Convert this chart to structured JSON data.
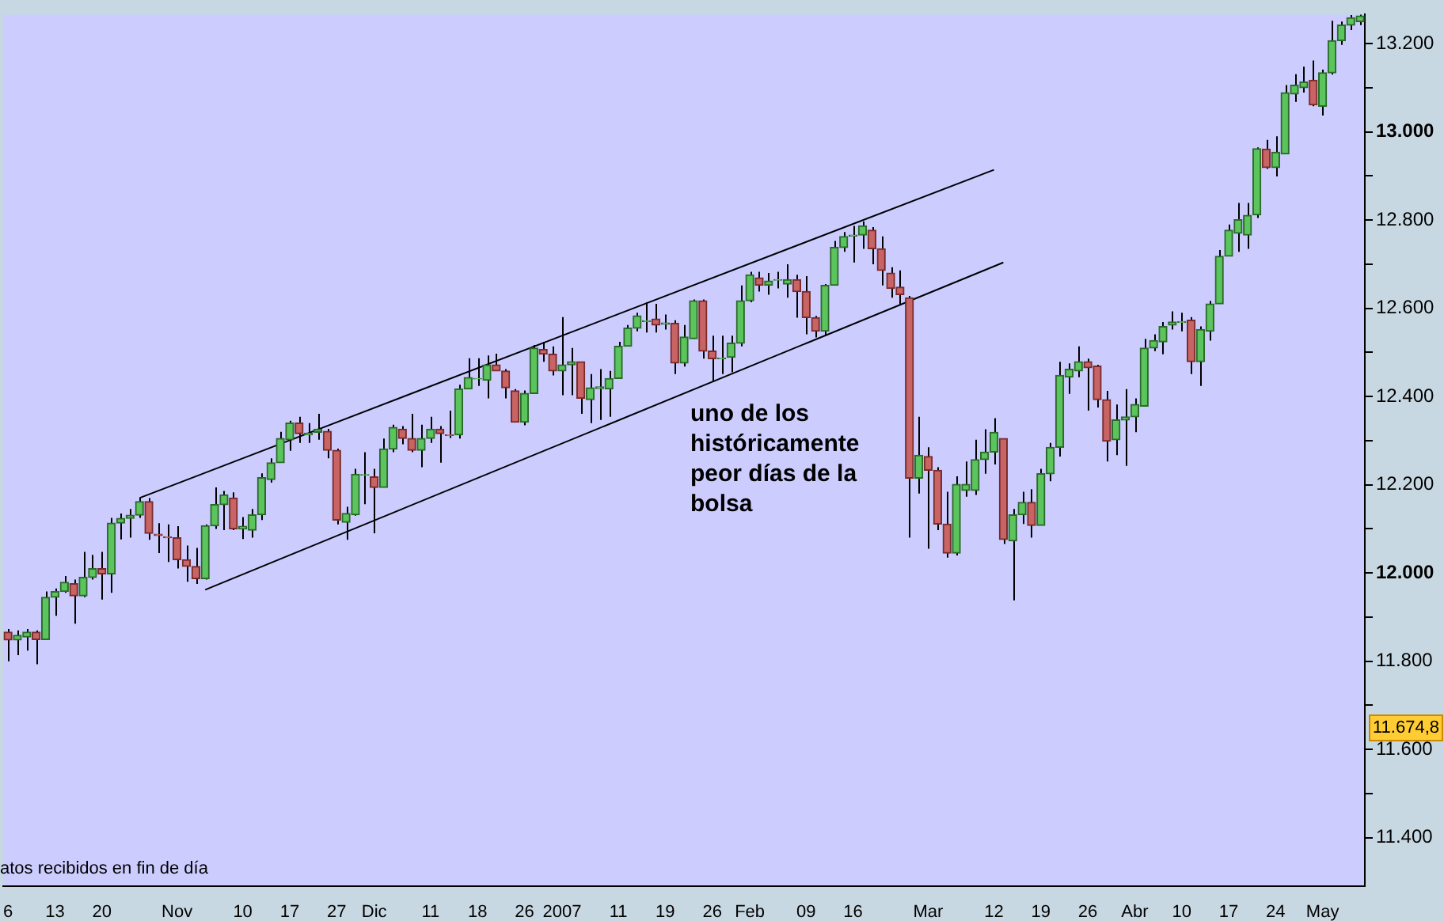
{
  "chart_data": {
    "type": "candlestick",
    "categories": [
      "6",
      null,
      null,
      null,
      null,
      "13",
      null,
      null,
      null,
      null,
      "20",
      null,
      null,
      null,
      null,
      null,
      null,
      null,
      "Nov",
      null,
      null,
      null,
      null,
      null,
      null,
      "10",
      null,
      null,
      null,
      null,
      "17",
      null,
      null,
      null,
      null,
      "27",
      null,
      null,
      null,
      "Dic",
      null,
      null,
      null,
      null,
      null,
      "11",
      null,
      null,
      null,
      null,
      "18",
      null,
      null,
      null,
      null,
      "26",
      null,
      null,
      null,
      "2007",
      null,
      null,
      null,
      null,
      null,
      "11",
      null,
      null,
      null,
      null,
      "19",
      null,
      null,
      null,
      null,
      "26",
      null,
      null,
      null,
      "Feb",
      null,
      null,
      null,
      null,
      null,
      "09",
      null,
      null,
      null,
      null,
      "16",
      null,
      null,
      null,
      null,
      null,
      null,
      null,
      "Mar",
      null,
      null,
      null,
      null,
      null,
      null,
      "12",
      null,
      null,
      null,
      null,
      "19",
      null,
      null,
      null,
      null,
      "26",
      null,
      null,
      null,
      null,
      "Abr",
      null,
      null,
      null,
      null,
      "10",
      null,
      null,
      null,
      null,
      "17",
      null,
      null,
      null,
      null,
      "24",
      null,
      null,
      null,
      null,
      "May",
      null,
      null,
      null,
      null
    ],
    "ohlc": [
      [
        11866,
        11873,
        11800,
        11848
      ],
      [
        11848,
        11870,
        11814,
        11859
      ],
      [
        11855,
        11873,
        11824,
        11866
      ],
      [
        11866,
        11870,
        11793,
        11849
      ],
      [
        11849,
        11958,
        11848,
        11945
      ],
      [
        11945,
        11965,
        11903,
        11958
      ],
      [
        11958,
        11993,
        11955,
        11979
      ],
      [
        11976,
        11985,
        11885,
        11948
      ],
      [
        11948,
        12048,
        11945,
        11990
      ],
      [
        11990,
        12041,
        11985,
        12010
      ],
      [
        12010,
        12048,
        11940,
        11998
      ],
      [
        11998,
        12125,
        11955,
        12113
      ],
      [
        12113,
        12135,
        12076,
        12124
      ],
      [
        12124,
        12145,
        12080,
        12131
      ],
      [
        12131,
        12170,
        12125,
        12162
      ],
      [
        12162,
        12170,
        12075,
        12090
      ],
      [
        12088,
        12113,
        12045,
        12085
      ],
      [
        12082,
        12110,
        12025,
        12080
      ],
      [
        12080,
        12106,
        12010,
        12030
      ],
      [
        12030,
        12062,
        11980,
        12015
      ],
      [
        12015,
        12057,
        11975,
        11987
      ],
      [
        11987,
        12110,
        11985,
        12107
      ],
      [
        12107,
        12194,
        12100,
        12155
      ],
      [
        12155,
        12186,
        12097,
        12177
      ],
      [
        12170,
        12183,
        12097,
        12100
      ],
      [
        12100,
        12127,
        12077,
        12106
      ],
      [
        12097,
        12145,
        12080,
        12132
      ],
      [
        12132,
        12226,
        12120,
        12216
      ],
      [
        12212,
        12260,
        12205,
        12250
      ],
      [
        12250,
        12320,
        12250,
        12305
      ],
      [
        12302,
        12345,
        12277,
        12340
      ],
      [
        12340,
        12354,
        12295,
        12316
      ],
      [
        12313,
        12340,
        12295,
        12317
      ],
      [
        12319,
        12361,
        12302,
        12326
      ],
      [
        12321,
        12327,
        12260,
        12278
      ],
      [
        12278,
        12282,
        12110,
        12120
      ],
      [
        12115,
        12150,
        12075,
        12135
      ],
      [
        12132,
        12236,
        12130,
        12224
      ],
      [
        12222,
        12274,
        12156,
        12223
      ],
      [
        12218,
        12236,
        12090,
        12194
      ],
      [
        12194,
        12305,
        12194,
        12281
      ],
      [
        12281,
        12336,
        12274,
        12330
      ],
      [
        12326,
        12333,
        12292,
        12305
      ],
      [
        12305,
        12361,
        12274,
        12278
      ],
      [
        12278,
        12336,
        12240,
        12305
      ],
      [
        12305,
        12354,
        12295,
        12326
      ],
      [
        12326,
        12333,
        12250,
        12316
      ],
      [
        12313,
        12368,
        12306,
        12312
      ],
      [
        12313,
        12427,
        12305,
        12417
      ],
      [
        12417,
        12487,
        12417,
        12443
      ],
      [
        12440,
        12487,
        12424,
        12441
      ],
      [
        12437,
        12493,
        12396,
        12472
      ],
      [
        12472,
        12497,
        12458,
        12458
      ],
      [
        12458,
        12462,
        12396,
        12420
      ],
      [
        12413,
        12417,
        12342,
        12342
      ],
      [
        12342,
        12414,
        12335,
        12407
      ],
      [
        12407,
        12517,
        12407,
        12510
      ],
      [
        12507,
        12524,
        12479,
        12496
      ],
      [
        12496,
        12514,
        12448,
        12458
      ],
      [
        12458,
        12580,
        12403,
        12472
      ],
      [
        12472,
        12510,
        12403,
        12479
      ],
      [
        12479,
        12479,
        12361,
        12396
      ],
      [
        12393,
        12451,
        12340,
        12420
      ],
      [
        12418,
        12462,
        12347,
        12422
      ],
      [
        12417,
        12458,
        12354,
        12441
      ],
      [
        12441,
        12524,
        12441,
        12514
      ],
      [
        12514,
        12562,
        12514,
        12555
      ],
      [
        12555,
        12590,
        12548,
        12583
      ],
      [
        12570,
        12614,
        12545,
        12572
      ],
      [
        12576,
        12610,
        12545,
        12562
      ],
      [
        12564,
        12586,
        12552,
        12567
      ],
      [
        12566,
        12573,
        12451,
        12476
      ],
      [
        12476,
        12562,
        12468,
        12535
      ],
      [
        12531,
        12620,
        12531,
        12617
      ],
      [
        12617,
        12620,
        12486,
        12503
      ],
      [
        12503,
        12538,
        12434,
        12486
      ],
      [
        12486,
        12538,
        12451,
        12487
      ],
      [
        12489,
        12538,
        12455,
        12521
      ],
      [
        12521,
        12652,
        12514,
        12617
      ],
      [
        12617,
        12683,
        12614,
        12676
      ],
      [
        12669,
        12683,
        12638,
        12652
      ],
      [
        12652,
        12680,
        12631,
        12662
      ],
      [
        12664,
        12683,
        12645,
        12665
      ],
      [
        12655,
        12700,
        12624,
        12665
      ],
      [
        12665,
        12676,
        12579,
        12638
      ],
      [
        12638,
        12673,
        12541,
        12579
      ],
      [
        12579,
        12583,
        12534,
        12548
      ],
      [
        12548,
        12655,
        12538,
        12652
      ],
      [
        12652,
        12753,
        12652,
        12738
      ],
      [
        12738,
        12773,
        12728,
        12763
      ],
      [
        12764,
        12787,
        12704,
        12766
      ],
      [
        12766,
        12797,
        12735,
        12787
      ],
      [
        12777,
        12784,
        12700,
        12735
      ],
      [
        12735,
        12763,
        12652,
        12686
      ],
      [
        12680,
        12693,
        12624,
        12645
      ],
      [
        12648,
        12686,
        12607,
        12631
      ],
      [
        12624,
        12628,
        12080,
        12215
      ],
      [
        12215,
        12354,
        12180,
        12267
      ],
      [
        12264,
        12285,
        12055,
        12233
      ],
      [
        12233,
        12240,
        12097,
        12111
      ],
      [
        12111,
        12184,
        12035,
        12045
      ],
      [
        12045,
        12219,
        12040,
        12201
      ],
      [
        12187,
        12253,
        12173,
        12201
      ],
      [
        12187,
        12302,
        12177,
        12257
      ],
      [
        12257,
        12326,
        12225,
        12274
      ],
      [
        12274,
        12351,
        12246,
        12319
      ],
      [
        12305,
        12305,
        12066,
        12076
      ],
      [
        12073,
        12145,
        11938,
        12132
      ],
      [
        12132,
        12184,
        12111,
        12160
      ],
      [
        12160,
        12190,
        12080,
        12108
      ],
      [
        12108,
        12236,
        12108,
        12225
      ],
      [
        12225,
        12295,
        12208,
        12285
      ],
      [
        12285,
        12479,
        12264,
        12448
      ],
      [
        12444,
        12475,
        12406,
        12462
      ],
      [
        12458,
        12514,
        12444,
        12479
      ],
      [
        12479,
        12486,
        12368,
        12465
      ],
      [
        12469,
        12472,
        12375,
        12393
      ],
      [
        12393,
        12413,
        12253,
        12299
      ],
      [
        12302,
        12382,
        12267,
        12347
      ],
      [
        12347,
        12417,
        12243,
        12354
      ],
      [
        12354,
        12396,
        12319,
        12382
      ],
      [
        12378,
        12531,
        12378,
        12510
      ],
      [
        12510,
        12541,
        12503,
        12527
      ],
      [
        12524,
        12569,
        12496,
        12559
      ],
      [
        12562,
        12593,
        12552,
        12569
      ],
      [
        12568,
        12590,
        12548,
        12570
      ],
      [
        12573,
        12580,
        12451,
        12479
      ],
      [
        12479,
        12559,
        12424,
        12552
      ],
      [
        12548,
        12617,
        12527,
        12610
      ],
      [
        12610,
        12732,
        12610,
        12718
      ],
      [
        12718,
        12790,
        12718,
        12777
      ],
      [
        12770,
        12839,
        12728,
        12801
      ],
      [
        12766,
        12839,
        12735,
        12811
      ],
      [
        12812,
        12965,
        12805,
        12962
      ],
      [
        12961,
        12982,
        12916,
        12919
      ],
      [
        12919,
        12990,
        12899,
        12954
      ],
      [
        12950,
        13106,
        12950,
        13089
      ],
      [
        13086,
        13131,
        13068,
        13106
      ],
      [
        13100,
        13148,
        13089,
        13113
      ],
      [
        13117,
        13162,
        13058,
        13061
      ],
      [
        13058,
        13141,
        13037,
        13134
      ],
      [
        13134,
        13252,
        13130,
        13207
      ],
      [
        13207,
        13250,
        13197,
        13242
      ],
      [
        13242,
        13265,
        13231,
        13259
      ],
      [
        13250,
        13266,
        13242,
        13263
      ]
    ],
    "series": [
      {
        "type": "line",
        "color": "#000000",
        "values": [
          null,
          null,
          null,
          null,
          null,
          null,
          null,
          null,
          null,
          null,
          null,
          null,
          null,
          null,
          12170,
          null,
          null,
          null,
          null,
          null,
          null,
          null,
          null,
          null,
          null,
          null,
          null,
          null,
          null,
          null,
          null,
          null,
          null,
          null,
          null,
          null,
          null,
          null,
          null,
          null,
          null,
          null,
          null,
          null,
          null,
          null,
          null,
          null,
          null,
          null,
          null,
          null,
          null,
          null,
          null,
          null,
          null,
          null,
          null,
          null,
          null,
          null,
          null,
          null,
          null,
          null,
          null,
          null,
          null,
          null,
          null,
          null,
          null,
          null,
          null,
          null,
          null,
          null,
          null,
          null,
          null,
          null,
          null,
          null,
          null,
          null,
          null,
          null,
          null,
          null,
          null,
          null,
          null,
          null,
          null,
          null,
          null,
          null,
          null,
          null,
          null,
          null,
          null,
          null,
          null,
          12914,
          null,
          null,
          null,
          null,
          null,
          null,
          null,
          null,
          null,
          null,
          null,
          null,
          null,
          null,
          null,
          null,
          null,
          null,
          null,
          null,
          null,
          null,
          null,
          null,
          null,
          null,
          null,
          null,
          null,
          null,
          null,
          null,
          null,
          null,
          null,
          null,
          null,
          null,
          null
        ]
      },
      {
        "type": "line",
        "color": "#000000",
        "values": [
          null,
          null,
          null,
          null,
          null,
          null,
          null,
          null,
          null,
          null,
          null,
          null,
          null,
          null,
          null,
          null,
          null,
          null,
          null,
          null,
          null,
          11962,
          null,
          null,
          null,
          null,
          null,
          null,
          null,
          null,
          null,
          null,
          null,
          null,
          null,
          null,
          null,
          null,
          null,
          null,
          null,
          null,
          null,
          null,
          null,
          null,
          null,
          null,
          null,
          null,
          null,
          null,
          null,
          null,
          null,
          null,
          null,
          null,
          null,
          null,
          null,
          null,
          null,
          null,
          null,
          null,
          null,
          null,
          null,
          null,
          null,
          null,
          null,
          null,
          null,
          null,
          null,
          null,
          null,
          null,
          null,
          null,
          null,
          null,
          null,
          null,
          null,
          null,
          null,
          null,
          null,
          null,
          null,
          null,
          null,
          null,
          null,
          null,
          null,
          null,
          null,
          null,
          null,
          null,
          null,
          null,
          12704,
          null,
          null,
          null,
          null,
          null,
          null,
          null,
          null,
          null,
          null,
          null,
          null,
          null,
          null,
          null,
          null,
          null,
          null,
          null,
          null,
          null,
          null,
          null,
          null,
          null,
          null,
          null,
          null,
          null,
          null,
          null,
          null,
          null,
          null,
          null,
          null,
          null,
          null
        ]
      }
    ],
    "ylim": [
      11290,
      13266
    ],
    "yticks": [
      {
        "value": 11400,
        "label": "11.400"
      },
      {
        "value": 11500,
        "label": null
      },
      {
        "value": 11600,
        "label": "11.600"
      },
      {
        "value": 11700,
        "label": null
      },
      {
        "value": 11800,
        "label": "11.800"
      },
      {
        "value": 11900,
        "label": null
      },
      {
        "value": 12000,
        "label": "12.000"
      },
      {
        "value": 12100,
        "label": null
      },
      {
        "value": 12200,
        "label": "12.200"
      },
      {
        "value": 12300,
        "label": null
      },
      {
        "value": 12400,
        "label": "12.400"
      },
      {
        "value": 12500,
        "label": null
      },
      {
        "value": 12600,
        "label": "12.600"
      },
      {
        "value": 12700,
        "label": null
      },
      {
        "value": 12800,
        "label": "12.800"
      },
      {
        "value": 12900,
        "label": null
      },
      {
        "value": 13000,
        "label": "13.000"
      },
      {
        "value": 13100,
        "label": null
      },
      {
        "value": 13200,
        "label": "13.200"
      }
    ],
    "annotations": [
      "uno de los históricamente peor días de la bolsa",
      "atos recibidos en fin de día",
      "11.674,8"
    ]
  }
}
